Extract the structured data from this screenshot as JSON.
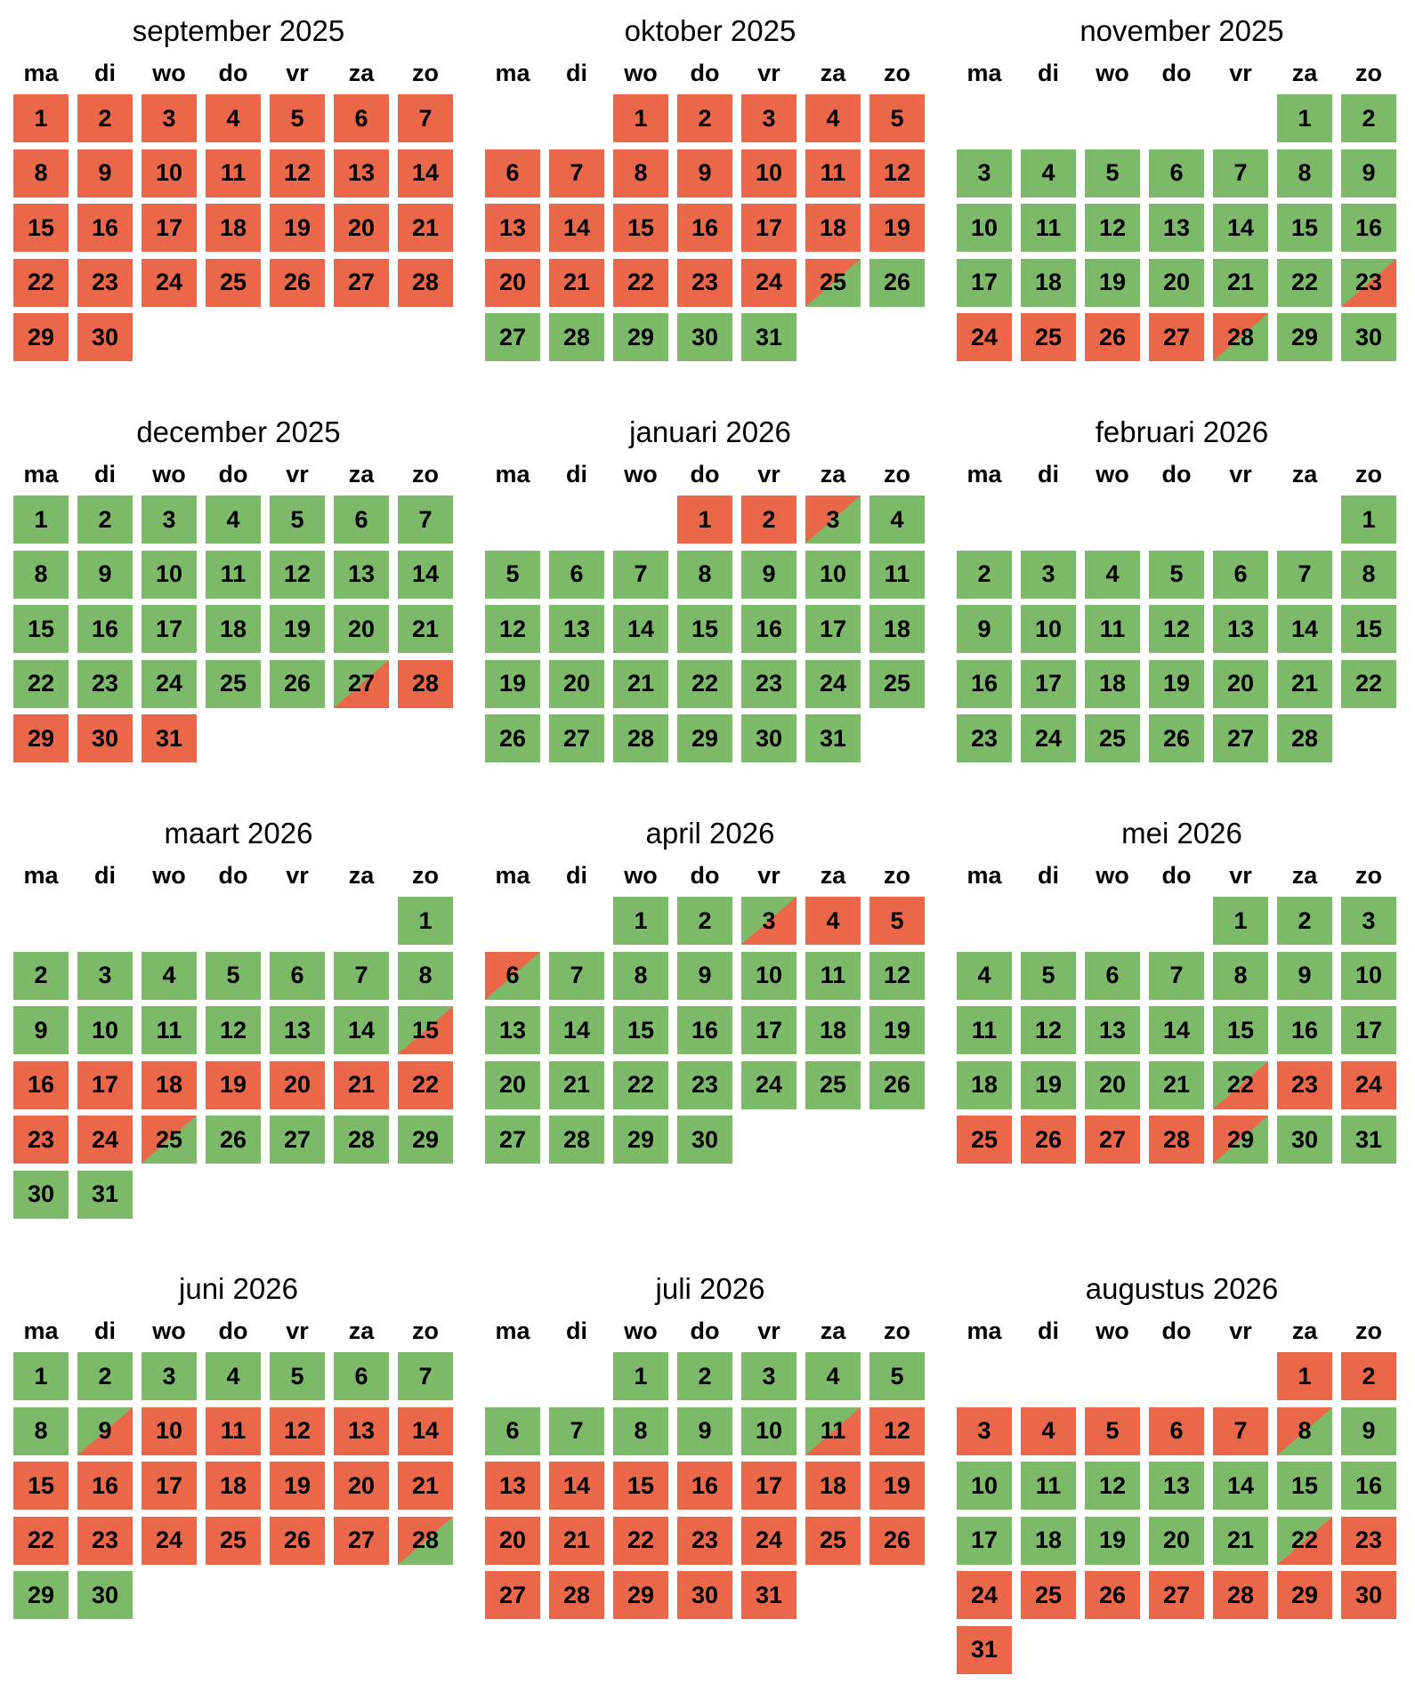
{
  "colors": {
    "red": "#EB6749",
    "green": "#7CBA6A"
  },
  "weekdays": [
    "ma",
    "di",
    "wo",
    "do",
    "vr",
    "za",
    "zo"
  ],
  "legend": {
    "r": "red",
    "g": "green",
    "rg": "red then green (diagonal split)",
    "gr": "green then red (diagonal split)"
  },
  "months": [
    {
      "title": "september 2025",
      "offset": 0,
      "days": [
        "r",
        "r",
        "r",
        "r",
        "r",
        "r",
        "r",
        "r",
        "r",
        "r",
        "r",
        "r",
        "r",
        "r",
        "r",
        "r",
        "r",
        "r",
        "r",
        "r",
        "r",
        "r",
        "r",
        "r",
        "r",
        "r",
        "r",
        "r",
        "r",
        "r"
      ]
    },
    {
      "title": "oktober 2025",
      "offset": 2,
      "days": [
        "r",
        "r",
        "r",
        "r",
        "r",
        "r",
        "r",
        "r",
        "r",
        "r",
        "r",
        "r",
        "r",
        "r",
        "r",
        "r",
        "r",
        "r",
        "r",
        "r",
        "r",
        "r",
        "r",
        "r",
        "rg",
        "g",
        "g",
        "g",
        "g",
        "g",
        "g"
      ]
    },
    {
      "title": "november 2025",
      "offset": 5,
      "days": [
        "g",
        "g",
        "g",
        "g",
        "g",
        "g",
        "g",
        "g",
        "g",
        "g",
        "g",
        "g",
        "g",
        "g",
        "g",
        "g",
        "g",
        "g",
        "g",
        "g",
        "g",
        "g",
        "gr",
        "r",
        "r",
        "r",
        "r",
        "rg",
        "g",
        "g"
      ]
    },
    {
      "title": "december 2025",
      "offset": 0,
      "days": [
        "g",
        "g",
        "g",
        "g",
        "g",
        "g",
        "g",
        "g",
        "g",
        "g",
        "g",
        "g",
        "g",
        "g",
        "g",
        "g",
        "g",
        "g",
        "g",
        "g",
        "g",
        "g",
        "g",
        "g",
        "g",
        "g",
        "gr",
        "r",
        "r",
        "r",
        "r"
      ]
    },
    {
      "title": "januari 2026",
      "offset": 3,
      "days": [
        "r",
        "r",
        "rg",
        "g",
        "g",
        "g",
        "g",
        "g",
        "g",
        "g",
        "g",
        "g",
        "g",
        "g",
        "g",
        "g",
        "g",
        "g",
        "g",
        "g",
        "g",
        "g",
        "g",
        "g",
        "g",
        "g",
        "g",
        "g",
        "g",
        "g",
        "g"
      ]
    },
    {
      "title": "februari 2026",
      "offset": 6,
      "days": [
        "g",
        "g",
        "g",
        "g",
        "g",
        "g",
        "g",
        "g",
        "g",
        "g",
        "g",
        "g",
        "g",
        "g",
        "g",
        "g",
        "g",
        "g",
        "g",
        "g",
        "g",
        "g",
        "g",
        "g",
        "g",
        "g",
        "g",
        "g"
      ]
    },
    {
      "title": "maart 2026",
      "offset": 6,
      "days": [
        "g",
        "g",
        "g",
        "g",
        "g",
        "g",
        "g",
        "g",
        "g",
        "g",
        "g",
        "g",
        "g",
        "g",
        "gr",
        "r",
        "r",
        "r",
        "r",
        "r",
        "r",
        "r",
        "r",
        "r",
        "rg",
        "g",
        "g",
        "g",
        "g",
        "g",
        "g"
      ]
    },
    {
      "title": "april 2026",
      "offset": 2,
      "days": [
        "g",
        "g",
        "gr",
        "r",
        "r",
        "rg",
        "g",
        "g",
        "g",
        "g",
        "g",
        "g",
        "g",
        "g",
        "g",
        "g",
        "g",
        "g",
        "g",
        "g",
        "g",
        "g",
        "g",
        "g",
        "g",
        "g",
        "g",
        "g",
        "g",
        "g"
      ]
    },
    {
      "title": "mei 2026",
      "offset": 4,
      "days": [
        "g",
        "g",
        "g",
        "g",
        "g",
        "g",
        "g",
        "g",
        "g",
        "g",
        "g",
        "g",
        "g",
        "g",
        "g",
        "g",
        "g",
        "g",
        "g",
        "g",
        "g",
        "gr",
        "r",
        "r",
        "r",
        "r",
        "r",
        "r",
        "rg",
        "g",
        "g"
      ]
    },
    {
      "title": "juni 2026",
      "offset": 0,
      "days": [
        "g",
        "g",
        "g",
        "g",
        "g",
        "g",
        "g",
        "g",
        "gr",
        "r",
        "r",
        "r",
        "r",
        "r",
        "r",
        "r",
        "r",
        "r",
        "r",
        "r",
        "r",
        "r",
        "r",
        "r",
        "r",
        "r",
        "r",
        "rg",
        "g",
        "g"
      ]
    },
    {
      "title": "juli 2026",
      "offset": 2,
      "days": [
        "g",
        "g",
        "g",
        "g",
        "g",
        "g",
        "g",
        "g",
        "g",
        "g",
        "gr",
        "r",
        "r",
        "r",
        "r",
        "r",
        "r",
        "r",
        "r",
        "r",
        "r",
        "r",
        "r",
        "r",
        "r",
        "r",
        "r",
        "r",
        "r",
        "r",
        "r"
      ]
    },
    {
      "title": "augustus 2026",
      "offset": 5,
      "days": [
        "r",
        "r",
        "r",
        "r",
        "r",
        "r",
        "r",
        "rg",
        "g",
        "g",
        "g",
        "g",
        "g",
        "g",
        "g",
        "g",
        "g",
        "g",
        "g",
        "g",
        "g",
        "gr",
        "r",
        "r",
        "r",
        "r",
        "r",
        "r",
        "r",
        "r",
        "r"
      ]
    }
  ]
}
